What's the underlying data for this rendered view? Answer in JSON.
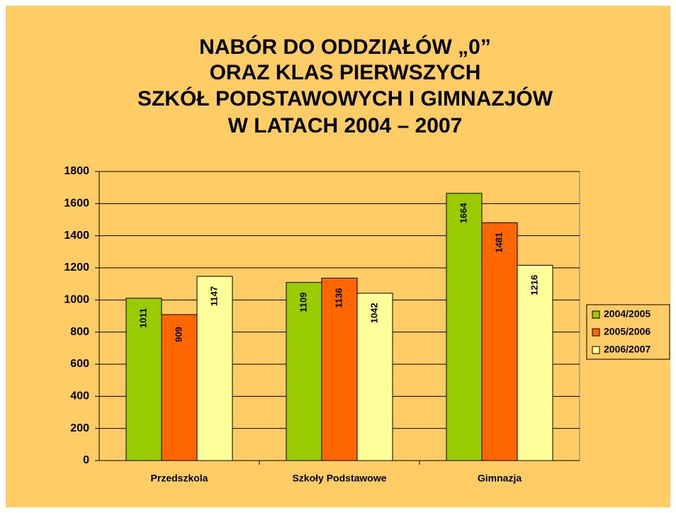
{
  "chart_data": {
    "type": "bar",
    "title": [
      "NABÓR DO ODDZIAŁÓW „0”",
      "ORAZ KLAS PIERWSZYCH",
      "SZKÓŁ PODSTAWOWYCH I GIMNAZJÓW",
      "W LATACH 2004 – 2007"
    ],
    "categories": [
      "Przedszkola",
      "Szkoły Podstawowe",
      "Gimnazja"
    ],
    "series": [
      {
        "name": "2004/2005",
        "color": "#99cc00",
        "values": [
          1011,
          1109,
          1664
        ]
      },
      {
        "name": "2005/2006",
        "color": "#ff6600",
        "values": [
          909,
          1136,
          1481
        ]
      },
      {
        "name": "2006/2007",
        "color": "#ffff99",
        "values": [
          1147,
          1042,
          1216
        ]
      }
    ],
    "ylim": [
      0,
      1800
    ],
    "yticks": [
      0,
      200,
      400,
      600,
      800,
      1000,
      1200,
      1400,
      1600,
      1800
    ],
    "grid": true,
    "legend": "right"
  }
}
